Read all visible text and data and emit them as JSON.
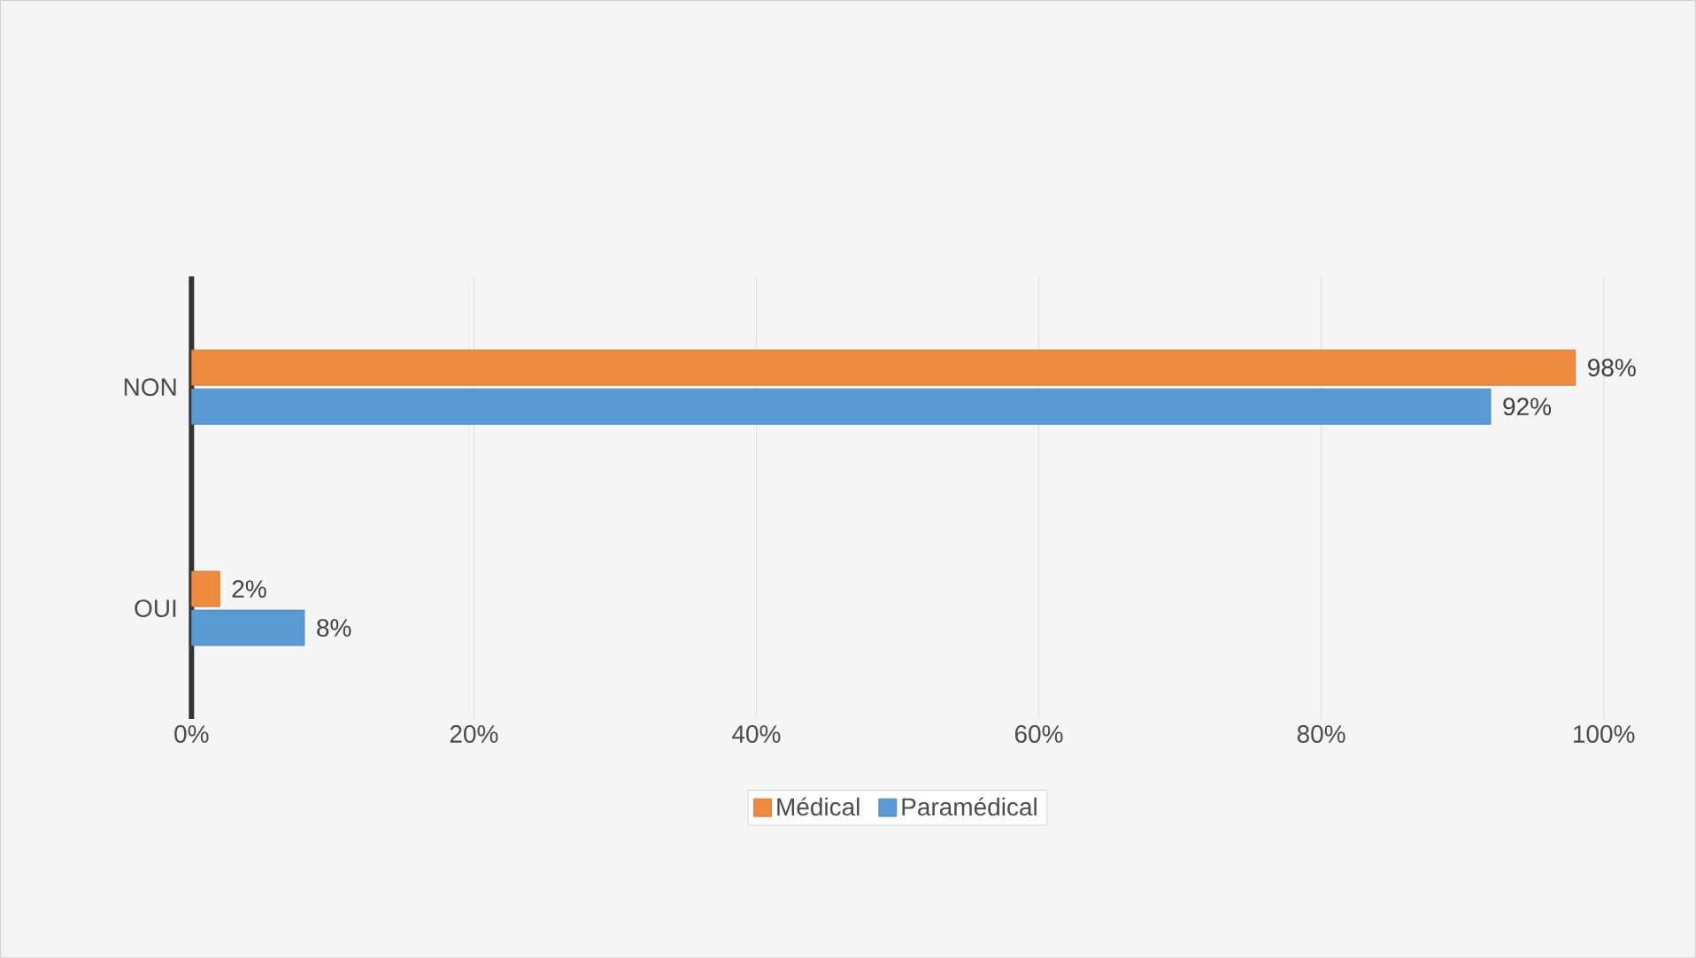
{
  "chart_data": {
    "type": "bar",
    "orientation": "horizontal",
    "categories": [
      "NON",
      "OUI"
    ],
    "series": [
      {
        "name": "Médical",
        "color": "#f08a3c",
        "values": [
          98,
          2
        ],
        "value_labels": [
          "98%",
          "2%"
        ]
      },
      {
        "name": "Paramédical",
        "color": "#5b9bd5",
        "values": [
          92,
          8
        ],
        "value_labels": [
          "92%",
          "8%"
        ]
      }
    ],
    "xlim": [
      0,
      100
    ],
    "xticks": [
      {
        "value": 0,
        "label": "0%"
      },
      {
        "value": 20,
        "label": "20%"
      },
      {
        "value": 40,
        "label": "40%"
      },
      {
        "value": 60,
        "label": "60%"
      },
      {
        "value": 80,
        "label": "80%"
      },
      {
        "value": 100,
        "label": "100%"
      }
    ],
    "grid": "x",
    "legend": "bottom"
  }
}
